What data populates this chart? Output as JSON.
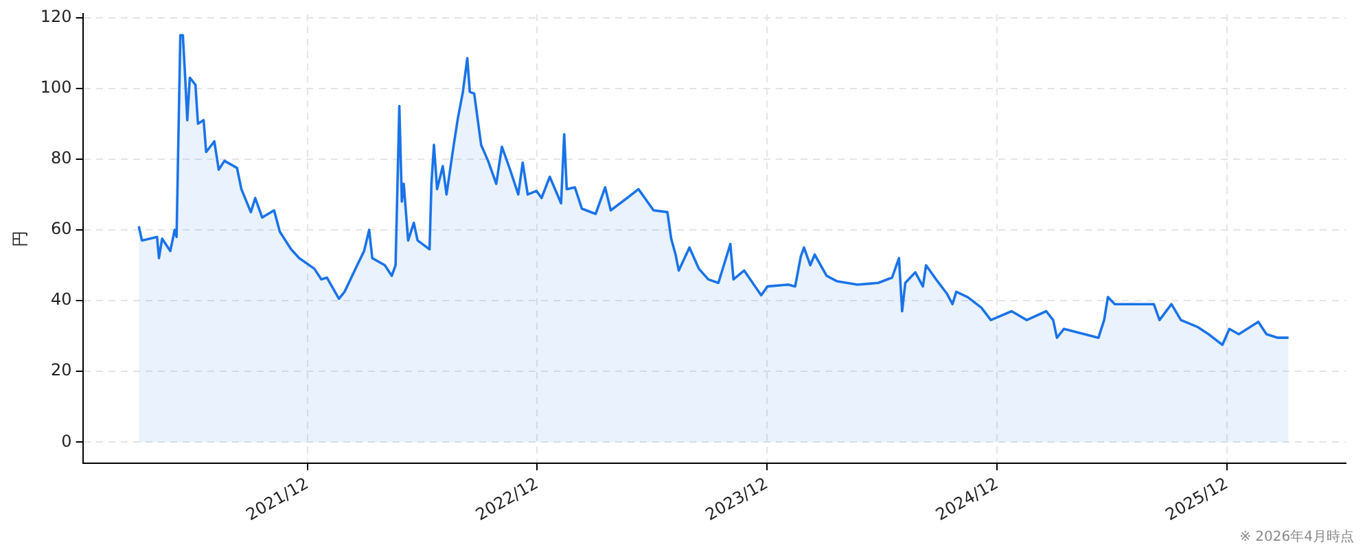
{
  "chart_data": {
    "type": "area",
    "ylabel": "円",
    "annotations": [
      "※ 2026年4月時点"
    ],
    "xlim": [
      "2020-12-09",
      "2026-06-08"
    ],
    "xticks": [
      {
        "value": "2021-12-01",
        "label": "2021/12"
      },
      {
        "value": "2022-12-01",
        "label": "2022/12"
      },
      {
        "value": "2023-12-01",
        "label": "2023/12"
      },
      {
        "value": "2024-12-01",
        "label": "2024/12"
      },
      {
        "value": "2025-12-01",
        "label": "2025/12"
      }
    ],
    "ylim": [
      -6,
      121
    ],
    "yticks": [
      0,
      20,
      40,
      60,
      80,
      100,
      120
    ],
    "grid": true,
    "legend": false,
    "x": [
      "2021-03-08",
      "2021-03-13",
      "2021-04-06",
      "2021-04-09",
      "2021-04-14",
      "2021-04-27",
      "2021-05-04",
      "2021-05-07",
      "2021-05-10",
      "2021-05-13",
      "2021-05-17",
      "2021-05-21",
      "2021-05-24",
      "2021-05-28",
      "2021-06-06",
      "2021-06-10",
      "2021-06-19",
      "2021-06-23",
      "2021-07-06",
      "2021-07-13",
      "2021-07-22",
      "2021-08-11",
      "2021-08-18",
      "2021-09-02",
      "2021-09-09",
      "2021-09-20",
      "2021-10-09",
      "2021-10-18",
      "2021-11-05",
      "2021-11-18",
      "2021-12-12",
      "2021-12-23",
      "2022-01-01",
      "2022-01-20",
      "2022-01-29",
      "2022-02-18",
      "2022-03-01",
      "2022-03-09",
      "2022-03-14",
      "2022-04-03",
      "2022-04-14",
      "2022-04-20",
      "2022-04-26",
      "2022-04-30",
      "2022-05-03",
      "2022-05-10",
      "2022-05-19",
      "2022-05-25",
      "2022-06-13",
      "2022-06-16",
      "2022-06-20",
      "2022-06-25",
      "2022-07-04",
      "2022-07-10",
      "2022-07-21",
      "2022-07-28",
      "2022-08-05",
      "2022-08-12",
      "2022-08-16",
      "2022-08-23",
      "2022-09-03",
      "2022-09-14",
      "2022-09-27",
      "2022-10-06",
      "2022-10-19",
      "2022-11-01",
      "2022-11-08",
      "2022-11-16",
      "2022-11-30",
      "2022-12-08",
      "2022-12-21",
      "2023-01-08",
      "2023-01-13",
      "2023-01-17",
      "2023-01-30",
      "2023-02-10",
      "2023-03-04",
      "2023-03-19",
      "2023-03-28",
      "2023-04-23",
      "2023-05-11",
      "2023-06-04",
      "2023-06-26",
      "2023-07-02",
      "2023-07-09",
      "2023-07-14",
      "2023-07-31",
      "2023-08-15",
      "2023-08-30",
      "2023-09-15",
      "2023-10-04",
      "2023-10-09",
      "2023-10-26",
      "2023-11-22",
      "2023-12-02",
      "2024-01-04",
      "2024-01-15",
      "2024-01-24",
      "2024-01-29",
      "2024-02-08",
      "2024-02-15",
      "2024-03-05",
      "2024-03-21",
      "2024-04-23",
      "2024-05-26",
      "2024-06-17",
      "2024-06-28",
      "2024-07-03",
      "2024-07-08",
      "2024-07-24",
      "2024-08-05",
      "2024-08-10",
      "2024-08-26",
      "2024-09-12",
      "2024-09-21",
      "2024-09-27",
      "2024-10-15",
      "2024-11-06",
      "2024-11-21",
      "2024-12-24",
      "2025-01-17",
      "2025-02-17",
      "2025-02-28",
      "2025-03-06",
      "2025-03-17",
      "2025-04-19",
      "2025-05-11",
      "2025-05-20",
      "2025-05-26",
      "2025-06-06",
      "2025-06-24",
      "2025-08-07",
      "2025-08-16",
      "2025-09-04",
      "2025-09-19",
      "2025-10-16",
      "2025-11-02",
      "2025-11-24",
      "2025-12-05",
      "2025-12-20",
      "2026-01-20",
      "2026-02-02",
      "2026-02-20",
      "2026-03-09"
    ],
    "series": [
      {
        "color": "#1a73e8",
        "values": [
          61,
          57,
          58,
          52,
          57.5,
          54,
          60,
          58,
          87,
          115,
          115,
          102,
          91,
          103,
          101,
          90,
          91,
          82,
          85,
          77,
          79.5,
          77.5,
          71.5,
          65,
          69,
          63.5,
          65.5,
          59.5,
          54.5,
          52,
          49,
          46,
          46.5,
          40.5,
          42.5,
          50,
          54,
          60,
          52,
          50,
          47,
          50,
          95,
          68,
          73,
          57,
          62,
          57,
          54.5,
          73,
          84,
          71.5,
          78,
          70,
          83.5,
          91.5,
          99,
          108.5,
          99,
          98.5,
          84,
          79.5,
          73,
          83.5,
          77,
          70,
          79,
          70,
          71,
          69,
          75,
          67.5,
          87,
          71.5,
          72,
          66,
          64.5,
          72,
          65.5,
          69,
          71.5,
          65.5,
          65,
          57.5,
          53,
          48.5,
          55,
          49,
          46,
          45,
          56,
          46,
          48.5,
          41.5,
          44,
          44.5,
          44,
          52.5,
          55,
          50,
          53,
          47,
          45.5,
          44.5,
          45,
          46.5,
          52,
          37,
          45,
          48,
          44,
          50,
          46,
          42,
          39,
          42.5,
          41,
          38,
          34.5,
          37,
          34.5,
          37,
          34.5,
          29.5,
          32,
          30.5,
          29.5,
          34.5,
          41,
          39,
          39,
          39,
          34.5,
          39,
          34.5,
          32.5,
          30.5,
          27.5,
          32,
          30.5,
          34,
          30.5,
          29.5,
          29.5
        ]
      }
    ]
  }
}
